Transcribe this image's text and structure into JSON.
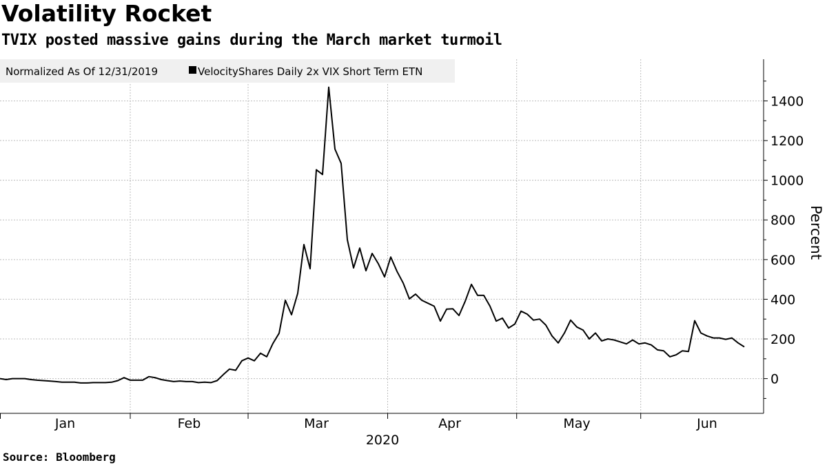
{
  "header": {
    "title": "Volatility Rocket",
    "subtitle": "TVIX posted massive gains during the March market turmoil"
  },
  "footer": {
    "source": "Source: Bloomberg"
  },
  "chart_data": {
    "type": "line",
    "title": "Volatility Rocket",
    "subtitle": "TVIX posted massive gains during the March market turmoil",
    "legend": {
      "note": "Normalized As Of 12/31/2019",
      "entries": [
        "VelocityShares Daily 2x VIX Short Term ETN"
      ],
      "placement": "top-left"
    },
    "xlabel": "2020",
    "ylabel": "Percent",
    "ylim": [
      -175,
      1610
    ],
    "yticks": [
      0,
      200,
      400,
      600,
      800,
      1000,
      1200,
      1400
    ],
    "grid": true,
    "x_unit": "trading-day index from Jan 1, 2020",
    "month_boundaries": [
      21,
      40,
      62.5,
      83.3,
      103.3
    ],
    "month_labels": [
      {
        "label": "Jan",
        "at": 10.5
      },
      {
        "label": "Feb",
        "at": 30.5
      },
      {
        "label": "Mar",
        "at": 51
      },
      {
        "label": "Apr",
        "at": 72.5
      },
      {
        "label": "May",
        "at": 93
      },
      {
        "label": "Jun",
        "at": 114
      }
    ],
    "series": [
      {
        "name": "VelocityShares Daily 2x VIX Short Term ETN",
        "color": "#000000",
        "values": [
          0,
          -5,
          0,
          0,
          0,
          -5,
          -8,
          -10,
          -12,
          -15,
          -18,
          -18,
          -18,
          -22,
          -22,
          -20,
          -20,
          -20,
          -18,
          -10,
          5,
          -8,
          -8,
          -8,
          10,
          5,
          -5,
          -10,
          -15,
          -12,
          -15,
          -15,
          -20,
          -18,
          -20,
          -10,
          20,
          48,
          42,
          90,
          104,
          90,
          128,
          110,
          177,
          229,
          395,
          322,
          430,
          676,
          554,
          1053,
          1029,
          1469,
          1157,
          1085,
          700,
          558,
          658,
          544,
          631,
          579,
          513,
          613,
          541,
          482,
          402,
          426,
          395,
          380,
          365,
          290,
          350,
          352,
          318,
          390,
          475,
          420,
          420,
          365,
          290,
          305,
          255,
          275,
          340,
          325,
          295,
          300,
          270,
          215,
          180,
          230,
          295,
          260,
          245,
          200,
          230,
          190,
          200,
          195,
          185,
          175,
          195,
          175,
          180,
          170,
          145,
          140,
          110,
          120,
          140,
          137,
          292,
          230,
          215,
          205,
          205,
          198,
          205,
          180,
          160
        ]
      }
    ]
  }
}
